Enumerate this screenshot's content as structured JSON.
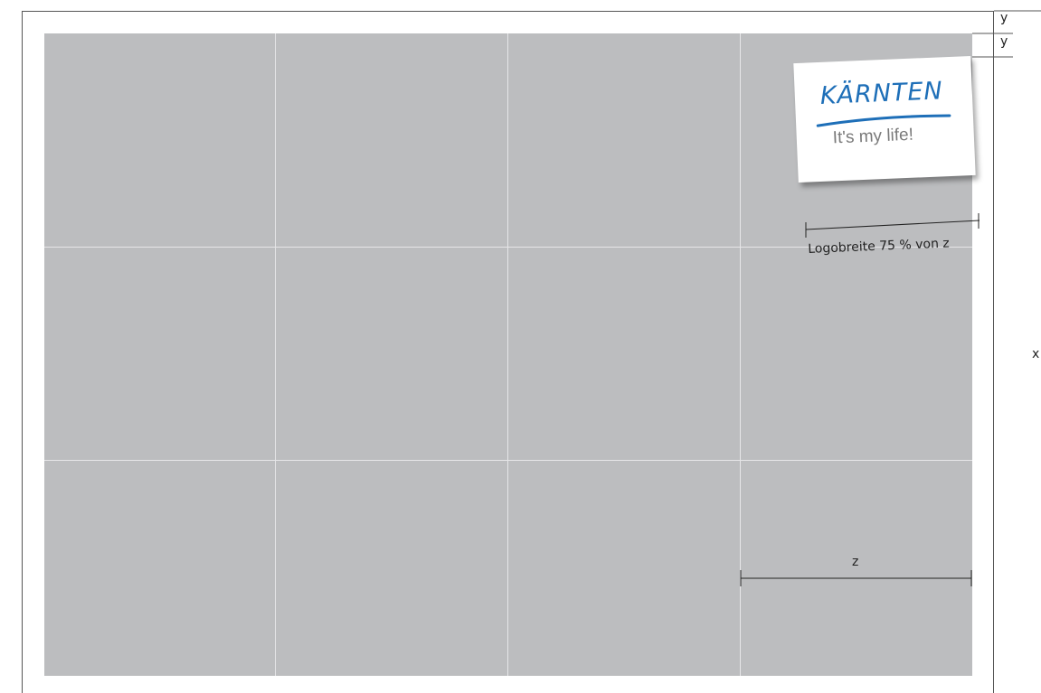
{
  "logo": {
    "wordmark": "KÄRNTEN",
    "tagline": "It's my life!",
    "brand_color": "#1e6fb8",
    "tagline_color": "#7a7a7a"
  },
  "labels": {
    "y_top": "y",
    "y_second": "y",
    "x": "x",
    "z": "z",
    "logo_width": "Logobreite 75 % von z"
  },
  "colors": {
    "grid_fill": "#bcbdbf",
    "grid_lines": "#e6e6e8",
    "frame": "#555555"
  },
  "grid": {
    "columns": 4,
    "rows": 3
  }
}
